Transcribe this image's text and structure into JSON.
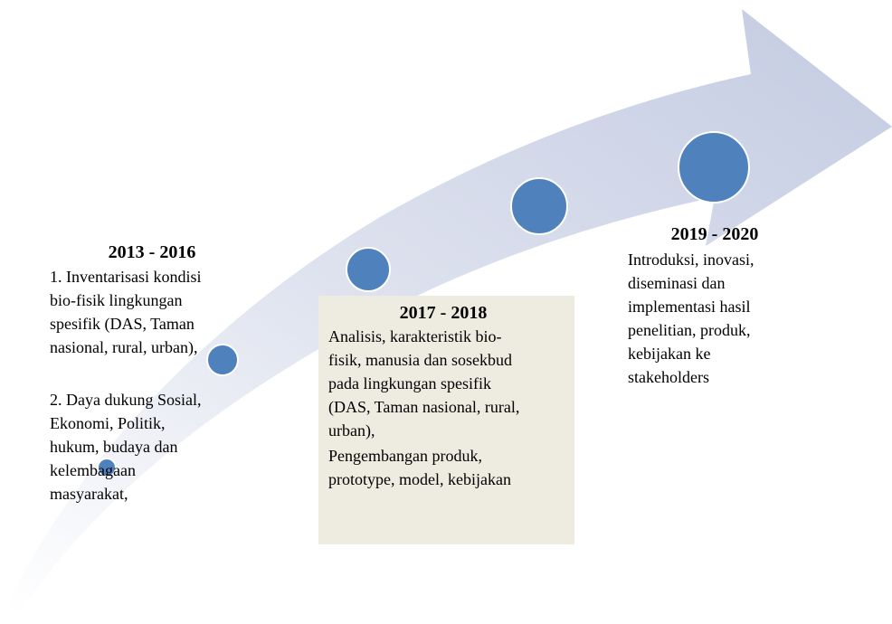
{
  "stages": [
    {
      "title": "2013 - 2016",
      "paragraphs": [
        [
          "1. Inventarisasi kondisi",
          "bio-fisik lingkungan",
          "spesifik (DAS, Taman",
          "nasional, rural, urban),"
        ],
        [
          "2. Daya dukung Sosial,",
          "Ekonomi, Politik,",
          "hukum, budaya dan",
          "kelembagaan",
          "masyarakat,"
        ]
      ]
    },
    {
      "title": "2017 - 2018",
      "paragraphs": [
        [
          "Analisis, karakteristik bio-",
          "fisik, manusia dan sosekbud",
          "pada lingkungan  spesifik",
          "(DAS, Taman nasional, rural,",
          "urban),"
        ],
        [
          "Pengembangan produk,",
          "prototype, model, kebijakan"
        ]
      ]
    },
    {
      "title": "2019 - 2020",
      "paragraphs": [
        [
          "Introduksi, inovasi,",
          "diseminasi dan",
          "implementasi  hasil",
          "penelitian,  produk,",
          "kebijakan ke",
          "stakeholders"
        ]
      ]
    }
  ]
}
